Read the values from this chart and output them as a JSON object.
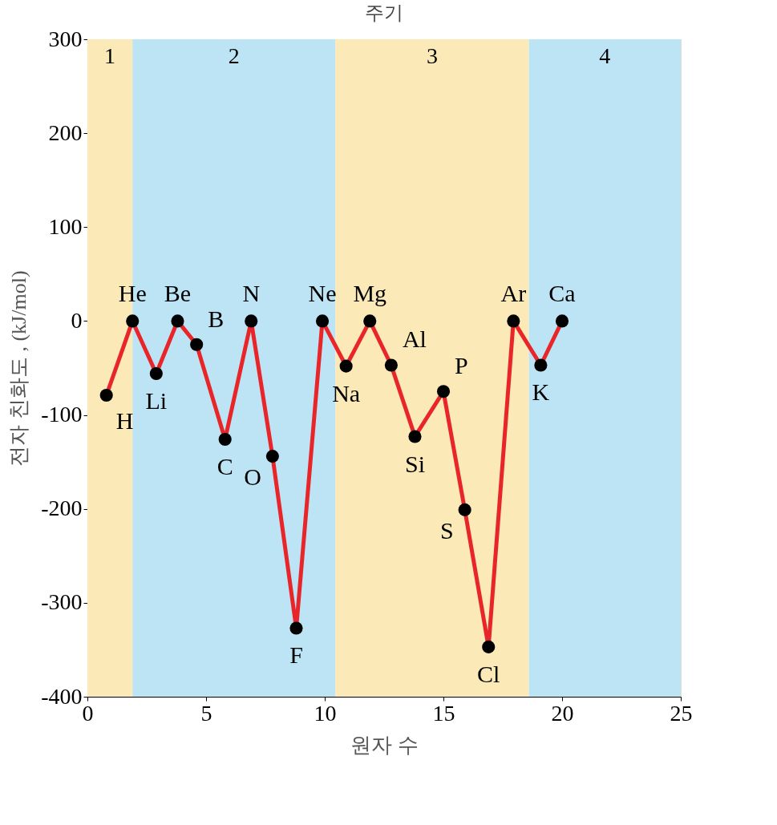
{
  "chart_data": {
    "type": "line",
    "title": "주기",
    "xlabel": "원자 수",
    "ylabel": "전자 친화도 , (kJ/mol)",
    "x": [
      0.8,
      1.9,
      2.9,
      3.8,
      4.6,
      5.8,
      6.9,
      7.8,
      8.8,
      9.9,
      10.9,
      11.9,
      12.8,
      13.8,
      15.0,
      15.9,
      16.9,
      17.95,
      19.1,
      20.0
    ],
    "series": [
      {
        "color": "#e8262a",
        "values": [
          -79,
          0,
          -56,
          0,
          -25,
          -126,
          0,
          -144,
          -327,
          0,
          -48,
          0,
          -47,
          -123,
          -75,
          -201,
          -347,
          0,
          -47,
          0
        ]
      }
    ],
    "annotations": [
      {
        "text": "H",
        "x": 0.8,
        "y": -79
      },
      {
        "text": "He",
        "x": 1.9,
        "y": 0
      },
      {
        "text": "Li",
        "x": 2.9,
        "y": -56
      },
      {
        "text": "Be",
        "x": 3.8,
        "y": 0
      },
      {
        "text": "B",
        "x": 4.6,
        "y": -25
      },
      {
        "text": "C",
        "x": 5.8,
        "y": -126
      },
      {
        "text": "N",
        "x": 6.9,
        "y": 0
      },
      {
        "text": "O",
        "x": 7.8,
        "y": -144
      },
      {
        "text": "F",
        "x": 8.8,
        "y": -327
      },
      {
        "text": "Ne",
        "x": 9.9,
        "y": 0
      },
      {
        "text": "Na",
        "x": 10.9,
        "y": -48
      },
      {
        "text": "Mg",
        "x": 11.9,
        "y": 0
      },
      {
        "text": "Al",
        "x": 12.8,
        "y": -47
      },
      {
        "text": "Si",
        "x": 13.8,
        "y": -123
      },
      {
        "text": "P",
        "x": 15.0,
        "y": -75
      },
      {
        "text": "S",
        "x": 15.9,
        "y": -201
      },
      {
        "text": "Cl",
        "x": 16.9,
        "y": -347
      },
      {
        "text": "Ar",
        "x": 17.95,
        "y": 0
      },
      {
        "text": "K",
        "x": 19.1,
        "y": -47
      },
      {
        "text": "Ca",
        "x": 20.0,
        "y": 0
      }
    ],
    "bands": [
      {
        "axis": "x",
        "from": 0,
        "to": 1.9,
        "label": "1",
        "color": "#fbe9b7"
      },
      {
        "axis": "x",
        "from": 1.9,
        "to": 10.45,
        "label": "2",
        "color": "#bde4f5"
      },
      {
        "axis": "x",
        "from": 10.45,
        "to": 18.6,
        "label": "3",
        "color": "#fbe9b7"
      },
      {
        "axis": "x",
        "from": 18.6,
        "to": 25,
        "label": "4",
        "color": "#bde4f5"
      }
    ],
    "xlim": [
      0,
      25
    ],
    "xticks": [
      0,
      5,
      10,
      15,
      20,
      25
    ],
    "ylim": [
      -400,
      300
    ],
    "yticks": [
      -400,
      -300,
      -200,
      -100,
      0,
      100,
      200,
      300
    ],
    "grid": false,
    "marker": "circle",
    "line_style": "solid"
  }
}
